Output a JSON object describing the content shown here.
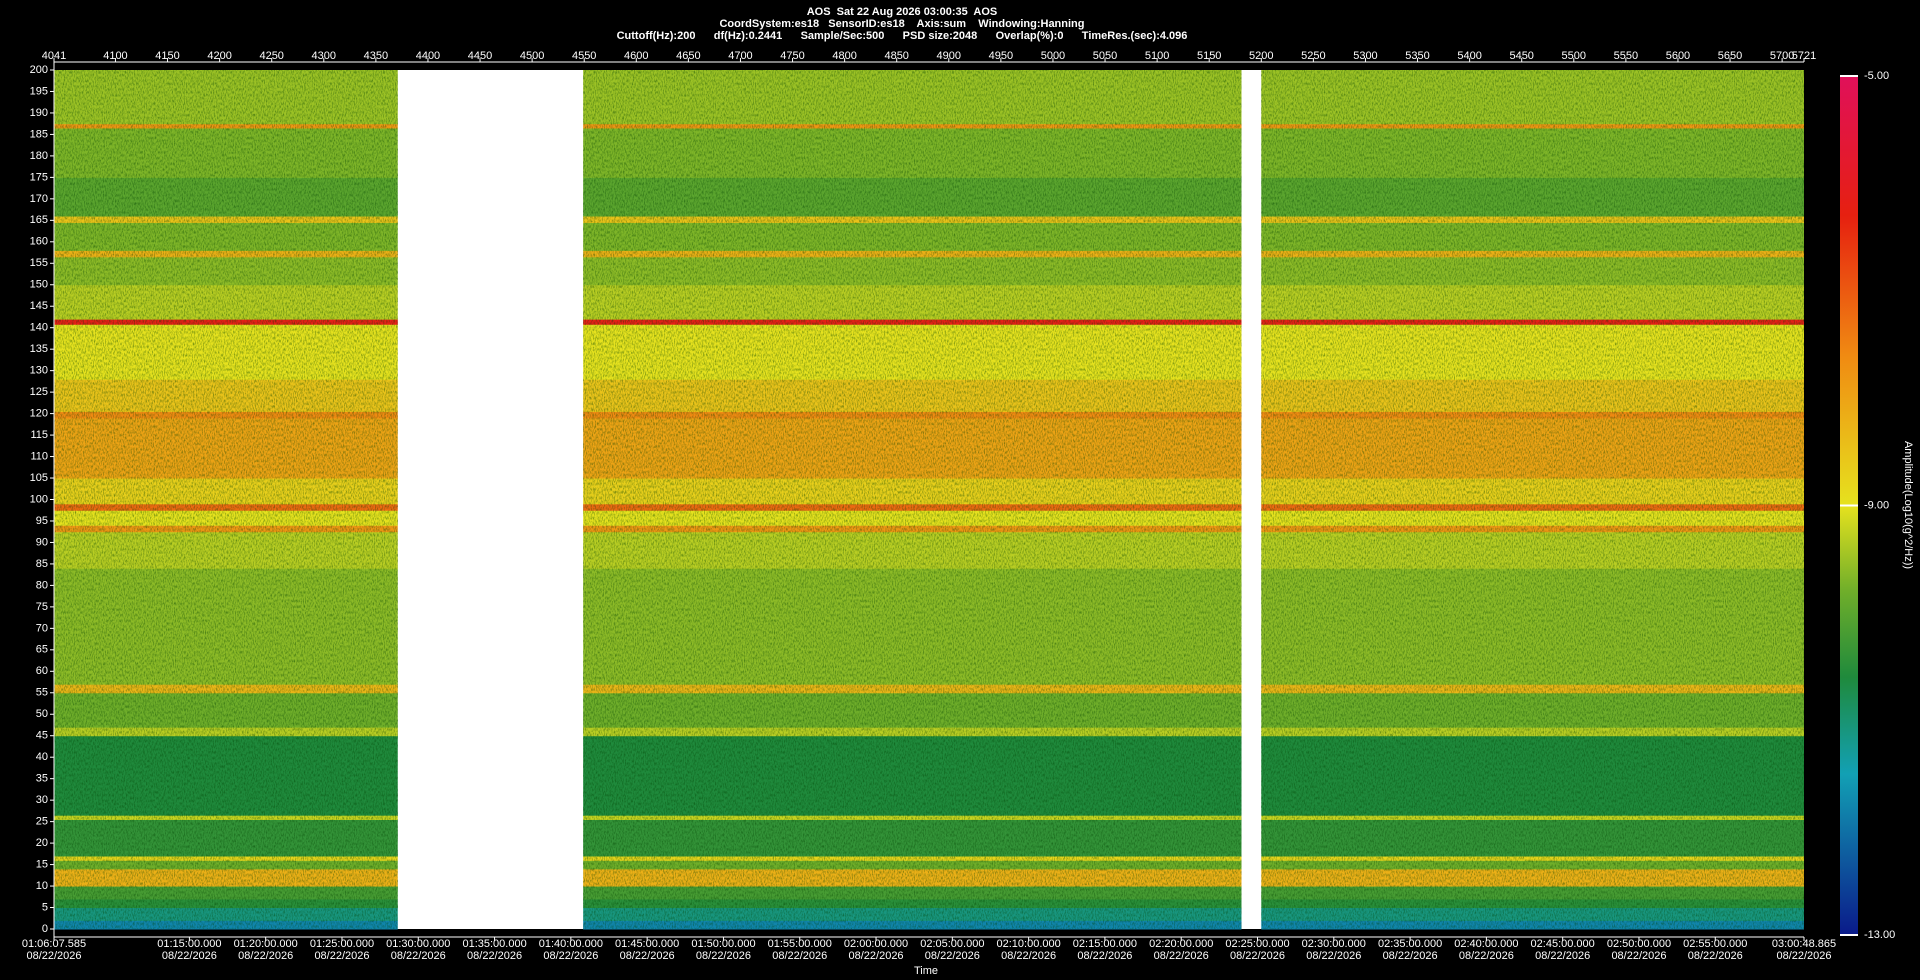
{
  "chart_data": {
    "type": "spectrogram",
    "title": "AOS  Sat 22 Aug 2026 03:00:35  AOS",
    "subtitle": "CoordSystem:es18   SensorID:es18    Axis:sum    Windowing:Hanning",
    "parameters": "Cuttoff(Hz):200      df(Hz):0.2441      Sample/Sec:500      PSD size:2048      Overlap(%):0      TimeRes.(sec):4.096",
    "x_label": "Time",
    "colorbar_label": "Amplitude(Log10(g^2/Hz))",
    "xlim": [
      4041,
      5721
    ],
    "xticks": [
      4041,
      4100,
      4150,
      4200,
      4250,
      4300,
      4350,
      4400,
      4450,
      4500,
      4550,
      4600,
      4650,
      4700,
      4750,
      4800,
      4850,
      4900,
      4950,
      5000,
      5050,
      5100,
      5150,
      5200,
      5250,
      5300,
      5350,
      5400,
      5450,
      5500,
      5550,
      5600,
      5650,
      5700,
      5721
    ],
    "x2ticks": [
      {
        "value": 4041,
        "label": "01:06:07.585",
        "date": "08/22/2026"
      },
      {
        "value": 4170.98,
        "label": "01:15:00.000",
        "date": "08/22/2026"
      },
      {
        "value": 4244.22,
        "label": "01:20:00.000",
        "date": "08/22/2026"
      },
      {
        "value": 4317.46,
        "label": "01:25:00.000",
        "date": "08/22/2026"
      },
      {
        "value": 4390.7,
        "label": "01:30:00.000",
        "date": "08/22/2026"
      },
      {
        "value": 4463.95,
        "label": "01:35:00.000",
        "date": "08/22/2026"
      },
      {
        "value": 4537.19,
        "label": "01:40:00.000",
        "date": "08/22/2026"
      },
      {
        "value": 4610.43,
        "label": "01:45:00.000",
        "date": "08/22/2026"
      },
      {
        "value": 4683.67,
        "label": "01:50:00.000",
        "date": "08/22/2026"
      },
      {
        "value": 4756.91,
        "label": "01:55:00.000",
        "date": "08/22/2026"
      },
      {
        "value": 4830.15,
        "label": "02:00:00.000",
        "date": "08/22/2026"
      },
      {
        "value": 4903.4,
        "label": "02:05:00.000",
        "date": "08/22/2026"
      },
      {
        "value": 4976.64,
        "label": "02:10:00.000",
        "date": "08/22/2026"
      },
      {
        "value": 5049.88,
        "label": "02:15:00.000",
        "date": "08/22/2026"
      },
      {
        "value": 5123.12,
        "label": "02:20:00.000",
        "date": "08/22/2026"
      },
      {
        "value": 5196.36,
        "label": "02:25:00.000",
        "date": "08/22/2026"
      },
      {
        "value": 5269.61,
        "label": "02:30:00.000",
        "date": "08/22/2026"
      },
      {
        "value": 5342.85,
        "label": "02:35:00.000",
        "date": "08/22/2026"
      },
      {
        "value": 5416.09,
        "label": "02:40:00.000",
        "date": "08/22/2026"
      },
      {
        "value": 5489.33,
        "label": "02:45:00.000",
        "date": "08/22/2026"
      },
      {
        "value": 5562.57,
        "label": "02:50:00.000",
        "date": "08/22/2026"
      },
      {
        "value": 5635.81,
        "label": "02:55:00.000",
        "date": "08/22/2026"
      },
      {
        "value": 5721,
        "label": "03:00:48.865",
        "date": "08/22/2026"
      }
    ],
    "ylim": [
      0,
      200
    ],
    "yticks": [
      0,
      5,
      10,
      15,
      20,
      25,
      30,
      35,
      40,
      45,
      50,
      55,
      60,
      65,
      70,
      75,
      80,
      85,
      90,
      95,
      100,
      105,
      110,
      115,
      120,
      125,
      130,
      135,
      140,
      145,
      150,
      155,
      160,
      165,
      170,
      175,
      180,
      185,
      190,
      195,
      200
    ],
    "clim": [
      -13,
      -5
    ],
    "cticks": [
      {
        "value": -13,
        "label": "-13.00"
      },
      {
        "value": -9,
        "label": "-9.00"
      },
      {
        "value": -5,
        "label": "-5.00"
      }
    ],
    "colorscale": [
      [
        -13,
        "#0a1a8a"
      ],
      [
        -11.5,
        "#12a0b4"
      ],
      [
        -10.6,
        "#1f8a3c"
      ],
      [
        -9.8,
        "#6fae2a"
      ],
      [
        -9,
        "#e6e21e"
      ],
      [
        -7.6,
        "#f08a12"
      ],
      [
        -6.3,
        "#e62010"
      ],
      [
        -5,
        "#e0105a"
      ]
    ],
    "segments": [
      {
        "start": 4041,
        "end": 4371
      },
      {
        "start": 4549,
        "end": 5181
      },
      {
        "start": 5200,
        "end": 5721
      }
    ],
    "bands": [
      {
        "lo": 0,
        "hi": 2,
        "value": -11.8
      },
      {
        "lo": 2,
        "hi": 5,
        "value": -11.1
      },
      {
        "lo": 5,
        "hi": 7,
        "value": -10.5
      },
      {
        "lo": 7,
        "hi": 10,
        "value": -10.2
      },
      {
        "lo": 10,
        "hi": 14,
        "value": -8.2
      },
      {
        "lo": 14,
        "hi": 16,
        "value": -9.8
      },
      {
        "lo": 16,
        "hi": 17,
        "value": -8.8
      },
      {
        "lo": 17,
        "hi": 25.5,
        "value": -10.4
      },
      {
        "lo": 25.5,
        "hi": 26.5,
        "value": -9.2
      },
      {
        "lo": 26.5,
        "hi": 45,
        "value": -10.6
      },
      {
        "lo": 45,
        "hi": 47,
        "value": -9.3
      },
      {
        "lo": 47,
        "hi": 55,
        "value": -9.8
      },
      {
        "lo": 55,
        "hi": 57,
        "value": -8.3
      },
      {
        "lo": 57,
        "hi": 84,
        "value": -9.6
      },
      {
        "lo": 84,
        "hi": 92.5,
        "value": -9.3
      },
      {
        "lo": 92.5,
        "hi": 94,
        "value": -7.8
      },
      {
        "lo": 94,
        "hi": 97.5,
        "value": -9
      },
      {
        "lo": 97.5,
        "hi": 99,
        "value": -7.2
      },
      {
        "lo": 99,
        "hi": 105,
        "value": -8.7
      },
      {
        "lo": 105,
        "hi": 119,
        "value": -8
      },
      {
        "lo": 119,
        "hi": 120.5,
        "value": -7.6
      },
      {
        "lo": 120.5,
        "hi": 128,
        "value": -8.5
      },
      {
        "lo": 128,
        "hi": 140.8,
        "value": -9
      },
      {
        "lo": 140.8,
        "hi": 142,
        "value": -6.2
      },
      {
        "lo": 142,
        "hi": 150,
        "value": -9.3
      },
      {
        "lo": 150,
        "hi": 156.5,
        "value": -9.6
      },
      {
        "lo": 156.5,
        "hi": 158,
        "value": -8.2
      },
      {
        "lo": 158,
        "hi": 164.5,
        "value": -9.7
      },
      {
        "lo": 164.5,
        "hi": 166,
        "value": -8.5
      },
      {
        "lo": 166,
        "hi": 175,
        "value": -10
      },
      {
        "lo": 175,
        "hi": 186.5,
        "value": -9.7
      },
      {
        "lo": 186.5,
        "hi": 187.5,
        "value": -7.8
      },
      {
        "lo": 187.5,
        "hi": 200,
        "value": -9.5
      }
    ]
  }
}
